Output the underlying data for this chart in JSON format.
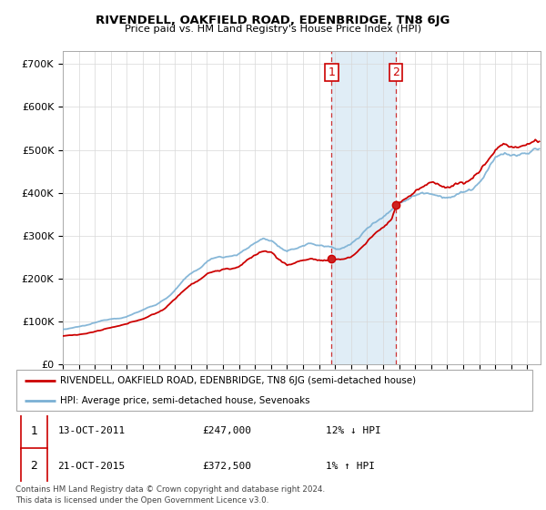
{
  "title": "RIVENDELL, OAKFIELD ROAD, EDENBRIDGE, TN8 6JG",
  "subtitle": "Price paid vs. HM Land Registry's House Price Index (HPI)",
  "ylabel_ticks": [
    "£0",
    "£100K",
    "£200K",
    "£300K",
    "£400K",
    "£500K",
    "£600K",
    "£700K"
  ],
  "ytick_values": [
    0,
    100000,
    200000,
    300000,
    400000,
    500000,
    600000,
    700000
  ],
  "ylim": [
    0,
    730000
  ],
  "xlim_start": 1995.0,
  "xlim_end": 2024.83,
  "sale1_x": 2011.79,
  "sale1_y": 247000,
  "sale2_x": 2015.81,
  "sale2_y": 372500,
  "vline1_x": 2011.79,
  "vline2_x": 2015.81,
  "shade_color": "#c8dff0",
  "legend_red_label": "RIVENDELL, OAKFIELD ROAD, EDENBRIDGE, TN8 6JG (semi-detached house)",
  "legend_blue_label": "HPI: Average price, semi-detached house, Sevenoaks",
  "table_row1": [
    "1",
    "13-OCT-2011",
    "£247,000",
    "12% ↓ HPI"
  ],
  "table_row2": [
    "2",
    "21-OCT-2015",
    "£372,500",
    "1% ↑ HPI"
  ],
  "footer": "Contains HM Land Registry data © Crown copyright and database right 2024.\nThis data is licensed under the Open Government Licence v3.0.",
  "red_color": "#cc0000",
  "blue_color": "#7ab0d4",
  "background_color": "#ffffff",
  "hpi_data": [
    [
      1995.0,
      82000
    ],
    [
      1995.5,
      84000
    ],
    [
      1996.0,
      87000
    ],
    [
      1996.5,
      90000
    ],
    [
      1997.0,
      95000
    ],
    [
      1997.5,
      100000
    ],
    [
      1998.0,
      105000
    ],
    [
      1998.5,
      108000
    ],
    [
      1999.0,
      113000
    ],
    [
      1999.5,
      120000
    ],
    [
      2000.0,
      128000
    ],
    [
      2000.5,
      136000
    ],
    [
      2001.0,
      145000
    ],
    [
      2001.5,
      158000
    ],
    [
      2002.0,
      175000
    ],
    [
      2002.5,
      196000
    ],
    [
      2003.0,
      210000
    ],
    [
      2003.5,
      222000
    ],
    [
      2004.0,
      238000
    ],
    [
      2004.5,
      248000
    ],
    [
      2005.0,
      252000
    ],
    [
      2005.5,
      255000
    ],
    [
      2006.0,
      262000
    ],
    [
      2006.5,
      272000
    ],
    [
      2007.0,
      285000
    ],
    [
      2007.5,
      295000
    ],
    [
      2008.0,
      292000
    ],
    [
      2008.5,
      278000
    ],
    [
      2009.0,
      262000
    ],
    [
      2009.5,
      268000
    ],
    [
      2010.0,
      278000
    ],
    [
      2010.5,
      282000
    ],
    [
      2011.0,
      278000
    ],
    [
      2011.5,
      275000
    ],
    [
      2012.0,
      272000
    ],
    [
      2012.5,
      275000
    ],
    [
      2013.0,
      282000
    ],
    [
      2013.5,
      298000
    ],
    [
      2014.0,
      318000
    ],
    [
      2014.5,
      338000
    ],
    [
      2015.0,
      352000
    ],
    [
      2015.5,
      368000
    ],
    [
      2016.0,
      385000
    ],
    [
      2016.5,
      398000
    ],
    [
      2017.0,
      408000
    ],
    [
      2017.5,
      415000
    ],
    [
      2018.0,
      418000
    ],
    [
      2018.5,
      415000
    ],
    [
      2019.0,
      415000
    ],
    [
      2019.5,
      420000
    ],
    [
      2020.0,
      425000
    ],
    [
      2020.5,
      432000
    ],
    [
      2021.0,
      448000
    ],
    [
      2021.5,
      472000
    ],
    [
      2022.0,
      500000
    ],
    [
      2022.5,
      515000
    ],
    [
      2023.0,
      510000
    ],
    [
      2023.5,
      508000
    ],
    [
      2024.0,
      512000
    ],
    [
      2024.5,
      520000
    ]
  ],
  "red_data": [
    [
      1995.0,
      68000
    ],
    [
      1995.5,
      70000
    ],
    [
      1996.0,
      72000
    ],
    [
      1996.5,
      75000
    ],
    [
      1997.0,
      79000
    ],
    [
      1997.5,
      83000
    ],
    [
      1998.0,
      87000
    ],
    [
      1998.5,
      90000
    ],
    [
      1999.0,
      94000
    ],
    [
      1999.5,
      100000
    ],
    [
      2000.0,
      107000
    ],
    [
      2000.5,
      115000
    ],
    [
      2001.0,
      123000
    ],
    [
      2001.5,
      135000
    ],
    [
      2002.0,
      152000
    ],
    [
      2002.5,
      172000
    ],
    [
      2003.0,
      188000
    ],
    [
      2003.5,
      200000
    ],
    [
      2004.0,
      215000
    ],
    [
      2004.5,
      222000
    ],
    [
      2005.0,
      226000
    ],
    [
      2005.5,
      228000
    ],
    [
      2006.0,
      234000
    ],
    [
      2006.5,
      244000
    ],
    [
      2007.0,
      258000
    ],
    [
      2007.5,
      268000
    ],
    [
      2008.0,
      265000
    ],
    [
      2008.5,
      250000
    ],
    [
      2009.0,
      235000
    ],
    [
      2009.5,
      240000
    ],
    [
      2010.0,
      248000
    ],
    [
      2010.5,
      252000
    ],
    [
      2011.0,
      248000
    ],
    [
      2011.5,
      246000
    ],
    [
      2011.79,
      247000
    ],
    [
      2012.0,
      243000
    ],
    [
      2012.5,
      246000
    ],
    [
      2013.0,
      252000
    ],
    [
      2013.5,
      268000
    ],
    [
      2014.0,
      288000
    ],
    [
      2014.5,
      308000
    ],
    [
      2015.0,
      322000
    ],
    [
      2015.5,
      338000
    ],
    [
      2015.81,
      372500
    ],
    [
      2016.0,
      375000
    ],
    [
      2016.5,
      390000
    ],
    [
      2017.0,
      402000
    ],
    [
      2017.5,
      412000
    ],
    [
      2018.0,
      418000
    ],
    [
      2018.5,
      415000
    ],
    [
      2019.0,
      412000
    ],
    [
      2019.5,
      418000
    ],
    [
      2020.0,
      422000
    ],
    [
      2020.5,
      430000
    ],
    [
      2021.0,
      448000
    ],
    [
      2021.5,
      472000
    ],
    [
      2022.0,
      500000
    ],
    [
      2022.5,
      515000
    ],
    [
      2023.0,
      510000
    ],
    [
      2023.5,
      508000
    ],
    [
      2024.0,
      512000
    ],
    [
      2024.5,
      520000
    ]
  ]
}
